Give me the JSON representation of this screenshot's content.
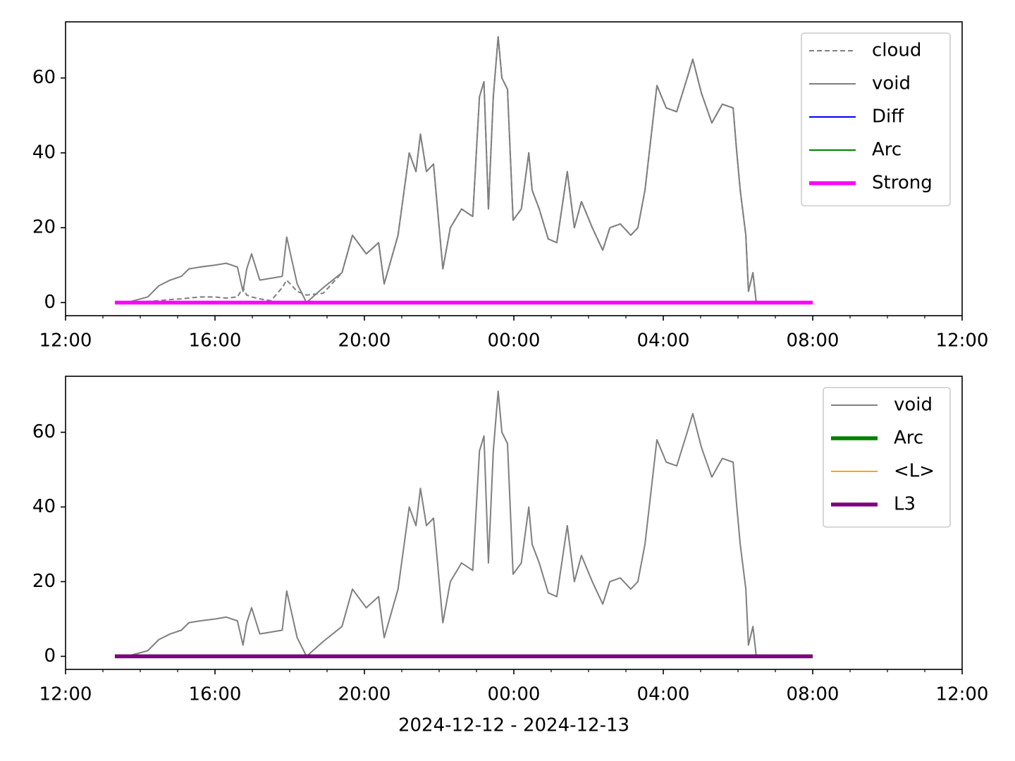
{
  "chart_data": [
    {
      "type": "line",
      "x": [
        13.32,
        13.75,
        14.2,
        14.5,
        14.8,
        15.1,
        15.3,
        15.6,
        16.0,
        16.3,
        16.6,
        16.75,
        16.85,
        16.98,
        17.2,
        17.5,
        17.8,
        17.92,
        18.2,
        18.45,
        18.9,
        19.4,
        19.68,
        20.05,
        20.38,
        20.53,
        20.9,
        21.2,
        21.38,
        21.5,
        21.66,
        21.85,
        22.1,
        22.3,
        22.6,
        22.9,
        23.08,
        23.2,
        23.32,
        23.45,
        23.58,
        23.68,
        23.83,
        23.98,
        24.2,
        24.4,
        24.49,
        24.68,
        24.92,
        25.15,
        25.43,
        25.62,
        25.81,
        26.1,
        26.38,
        26.57,
        26.85,
        27.13,
        27.32,
        27.51,
        27.83,
        28.08,
        28.36,
        28.64,
        28.79,
        29.02,
        29.3,
        29.58,
        29.87,
        29.96,
        30.06,
        30.21,
        30.28,
        30.4,
        30.49,
        32.0
      ],
      "series": [
        {
          "name": "cloud",
          "color": "#808080",
          "linestyle": "dashed",
          "linewidth": 1.5,
          "values": [
            0,
            0,
            0.3,
            0.5,
            0.8,
            1,
            1.2,
            1.5,
            1.5,
            1.2,
            1.5,
            4,
            2,
            1.5,
            1,
            0.5,
            4,
            6,
            3,
            2,
            2.5,
            8,
            18,
            13,
            16,
            5,
            18,
            40,
            35,
            45,
            35,
            37,
            9,
            20,
            25,
            23,
            55,
            59,
            25,
            55,
            71,
            60,
            57,
            22,
            25,
            40,
            30,
            25,
            17,
            16,
            35,
            20,
            27,
            20,
            14,
            20,
            21,
            18,
            20,
            30,
            58,
            52,
            51,
            60,
            65,
            56,
            48,
            53,
            52,
            41,
            30,
            18,
            3,
            8,
            0,
            null
          ]
        },
        {
          "name": "void",
          "color": "#808080",
          "linestyle": "solid",
          "linewidth": 1.5,
          "values": [
            0,
            0.3,
            1.5,
            4.5,
            6,
            7,
            9,
            9.5,
            10,
            10.5,
            9.5,
            3,
            9,
            13,
            6,
            6.5,
            7,
            17.5,
            5,
            0,
            4,
            8,
            18,
            13,
            16,
            5,
            18,
            40,
            35,
            45,
            35,
            37,
            9,
            20,
            25,
            23,
            55,
            59,
            25,
            55,
            71,
            60,
            57,
            22,
            25,
            40,
            30,
            25,
            17,
            16,
            35,
            20,
            27,
            20,
            14,
            20,
            21,
            18,
            20,
            30,
            58,
            52,
            51,
            60,
            65,
            56,
            48,
            53,
            52,
            41,
            30,
            18,
            3,
            8,
            0,
            null
          ]
        },
        {
          "name": "Diff",
          "color": "#0000ff",
          "linestyle": "solid",
          "linewidth": 1.5,
          "values": [
            0,
            0,
            0,
            0,
            0,
            0,
            0,
            0,
            0,
            0,
            0,
            0,
            0,
            0,
            0,
            0,
            0,
            0,
            0,
            0,
            0,
            0,
            0,
            0,
            0,
            0,
            0,
            0,
            0,
            0,
            0,
            0,
            0,
            0,
            0,
            0,
            0,
            0,
            0,
            0,
            0,
            0,
            0,
            0,
            0,
            0,
            0,
            0,
            0,
            0,
            0,
            0,
            0,
            0,
            0,
            0,
            0,
            0,
            0,
            0,
            0,
            0,
            0,
            0,
            0,
            0,
            0,
            0,
            0,
            0,
            0,
            0,
            0,
            0,
            0,
            0
          ]
        },
        {
          "name": "Arc",
          "color": "#008000",
          "linestyle": "solid",
          "linewidth": 1.5,
          "values": [
            0,
            0,
            0,
            0,
            0,
            0,
            0,
            0,
            0,
            0,
            0,
            0,
            0,
            0,
            0,
            0,
            0,
            0,
            0,
            0,
            0,
            0,
            0,
            0,
            0,
            0,
            0,
            0,
            0,
            0,
            0,
            0,
            0,
            0,
            0,
            0,
            0,
            0,
            0,
            0,
            0,
            0,
            0,
            0,
            0,
            0,
            0,
            0,
            0,
            0,
            0,
            0,
            0,
            0,
            0,
            0,
            0,
            0,
            0,
            0,
            0,
            0,
            0,
            0,
            0,
            0,
            0,
            0,
            0,
            0,
            0,
            0,
            0,
            0,
            0,
            0
          ]
        },
        {
          "name": "Strong",
          "color": "#ff00ff",
          "linestyle": "solid",
          "linewidth": 4,
          "values": [
            0,
            0,
            0,
            0,
            0,
            0,
            0,
            0,
            0,
            0,
            0,
            0,
            0,
            0,
            0,
            0,
            0,
            0,
            0,
            0,
            0,
            0,
            0,
            0,
            0,
            0,
            0,
            0,
            0,
            0,
            0,
            0,
            0,
            0,
            0,
            0,
            0,
            0,
            0,
            0,
            0,
            0,
            0,
            0,
            0,
            0,
            0,
            0,
            0,
            0,
            0,
            0,
            0,
            0,
            0,
            0,
            0,
            0,
            0,
            0,
            0,
            0,
            0,
            0,
            0,
            0,
            0,
            0,
            0,
            0,
            0,
            0,
            0,
            0,
            0,
            0
          ]
        }
      ],
      "xlim": [
        12,
        36
      ],
      "xticks": [
        {
          "value": 12,
          "label": "12:00"
        },
        {
          "value": 16,
          "label": "16:00"
        },
        {
          "value": 20,
          "label": "20:00"
        },
        {
          "value": 24,
          "label": "00:00"
        },
        {
          "value": 28,
          "label": "04:00"
        },
        {
          "value": 32,
          "label": "08:00"
        },
        {
          "value": 36,
          "label": "12:00"
        }
      ],
      "xminorticks": [
        13,
        14,
        15,
        17,
        18,
        19,
        21,
        22,
        23,
        25,
        26,
        27,
        29,
        30,
        31,
        33,
        34,
        35
      ],
      "ylim": [
        -3.5,
        75
      ],
      "yticks": [
        0,
        20,
        40,
        60
      ],
      "legend": "upper right"
    },
    {
      "type": "line",
      "x": [
        13.32,
        13.75,
        14.2,
        14.5,
        14.8,
        15.1,
        15.3,
        15.6,
        16.0,
        16.3,
        16.6,
        16.75,
        16.85,
        16.98,
        17.2,
        17.5,
        17.8,
        17.92,
        18.2,
        18.45,
        18.9,
        19.4,
        19.68,
        20.05,
        20.38,
        20.53,
        20.9,
        21.2,
        21.38,
        21.5,
        21.66,
        21.85,
        22.1,
        22.3,
        22.6,
        22.9,
        23.08,
        23.2,
        23.32,
        23.45,
        23.58,
        23.68,
        23.83,
        23.98,
        24.2,
        24.4,
        24.49,
        24.68,
        24.92,
        25.15,
        25.43,
        25.62,
        25.81,
        26.1,
        26.38,
        26.57,
        26.85,
        27.13,
        27.32,
        27.51,
        27.83,
        28.08,
        28.36,
        28.64,
        28.79,
        29.02,
        29.3,
        29.58,
        29.87,
        29.96,
        30.06,
        30.21,
        30.28,
        30.4,
        30.49,
        32.0
      ],
      "series": [
        {
          "name": "void",
          "color": "#808080",
          "linestyle": "solid",
          "linewidth": 1.5,
          "values": [
            0,
            0.3,
            1.5,
            4.5,
            6,
            7,
            9,
            9.5,
            10,
            10.5,
            9.5,
            3,
            9,
            13,
            6,
            6.5,
            7,
            17.5,
            5,
            0,
            4,
            8,
            18,
            13,
            16,
            5,
            18,
            40,
            35,
            45,
            35,
            37,
            9,
            20,
            25,
            23,
            55,
            59,
            25,
            55,
            71,
            60,
            57,
            22,
            25,
            40,
            30,
            25,
            17,
            16,
            35,
            20,
            27,
            20,
            14,
            20,
            21,
            18,
            20,
            30,
            58,
            52,
            51,
            60,
            65,
            56,
            48,
            53,
            52,
            41,
            30,
            18,
            3,
            8,
            0,
            null
          ]
        },
        {
          "name": "Arc",
          "color": "#008000",
          "linestyle": "solid",
          "linewidth": 4,
          "values": [
            0,
            0,
            0,
            0,
            0,
            0,
            0,
            0,
            0,
            0,
            0,
            0,
            0,
            0,
            0,
            0,
            0,
            0,
            0,
            0,
            0,
            0,
            0,
            0,
            0,
            0,
            0,
            0,
            0,
            0,
            0,
            0,
            0,
            0,
            0,
            0,
            0,
            0,
            0,
            0,
            0,
            0,
            0,
            0,
            0,
            0,
            0,
            0,
            0,
            0,
            0,
            0,
            0,
            0,
            0,
            0,
            0,
            0,
            0,
            0,
            0,
            0,
            0,
            0,
            0,
            0,
            0,
            0,
            0,
            0,
            0,
            0,
            0,
            0,
            0,
            0
          ]
        },
        {
          "name": "<L>",
          "color": "#ffa500",
          "linestyle": "solid",
          "linewidth": 1.5,
          "values": [
            0,
            0,
            0,
            0,
            0,
            0,
            0,
            0,
            0,
            0,
            0,
            0,
            0,
            0,
            0,
            0,
            0,
            0,
            0,
            0,
            0,
            0,
            0,
            0,
            0,
            0,
            0,
            0,
            0,
            0,
            0,
            0,
            0,
            0,
            0,
            0,
            0,
            0,
            0,
            0,
            0,
            0,
            0,
            0,
            0,
            0,
            0,
            0,
            0,
            0,
            0,
            0,
            0,
            0,
            0,
            0,
            0,
            0,
            0,
            0,
            0,
            0,
            0,
            0,
            0,
            0,
            0,
            0,
            0,
            0,
            0,
            0,
            0,
            0,
            0,
            0
          ]
        },
        {
          "name": "L3",
          "color": "#800080",
          "linestyle": "solid",
          "linewidth": 4,
          "values": [
            0,
            0,
            0,
            0,
            0,
            0,
            0,
            0,
            0,
            0,
            0,
            0,
            0,
            0,
            0,
            0,
            0,
            0,
            0,
            0,
            0,
            0,
            0,
            0,
            0,
            0,
            0,
            0,
            0,
            0,
            0,
            0,
            0,
            0,
            0,
            0,
            0,
            0,
            0,
            0,
            0,
            0,
            0,
            0,
            0,
            0,
            0,
            0,
            0,
            0,
            0,
            0,
            0,
            0,
            0,
            0,
            0,
            0,
            0,
            0,
            0,
            0,
            0,
            0,
            0,
            0,
            0,
            0,
            0,
            0,
            0,
            0,
            0,
            0,
            0,
            0
          ]
        }
      ],
      "xlim": [
        12,
        36
      ],
      "xticks": [
        {
          "value": 12,
          "label": "12:00"
        },
        {
          "value": 16,
          "label": "16:00"
        },
        {
          "value": 20,
          "label": "20:00"
        },
        {
          "value": 24,
          "label": "00:00"
        },
        {
          "value": 28,
          "label": "04:00"
        },
        {
          "value": 32,
          "label": "08:00"
        },
        {
          "value": 36,
          "label": "12:00"
        }
      ],
      "xminorticks": [
        13,
        14,
        15,
        17,
        18,
        19,
        21,
        22,
        23,
        25,
        26,
        27,
        29,
        30,
        31,
        33,
        34,
        35
      ],
      "ylim": [
        -3.5,
        75
      ],
      "yticks": [
        0,
        20,
        40,
        60
      ],
      "legend": "upper right",
      "xlabel": "2024-12-12 - 2024-12-13"
    }
  ]
}
